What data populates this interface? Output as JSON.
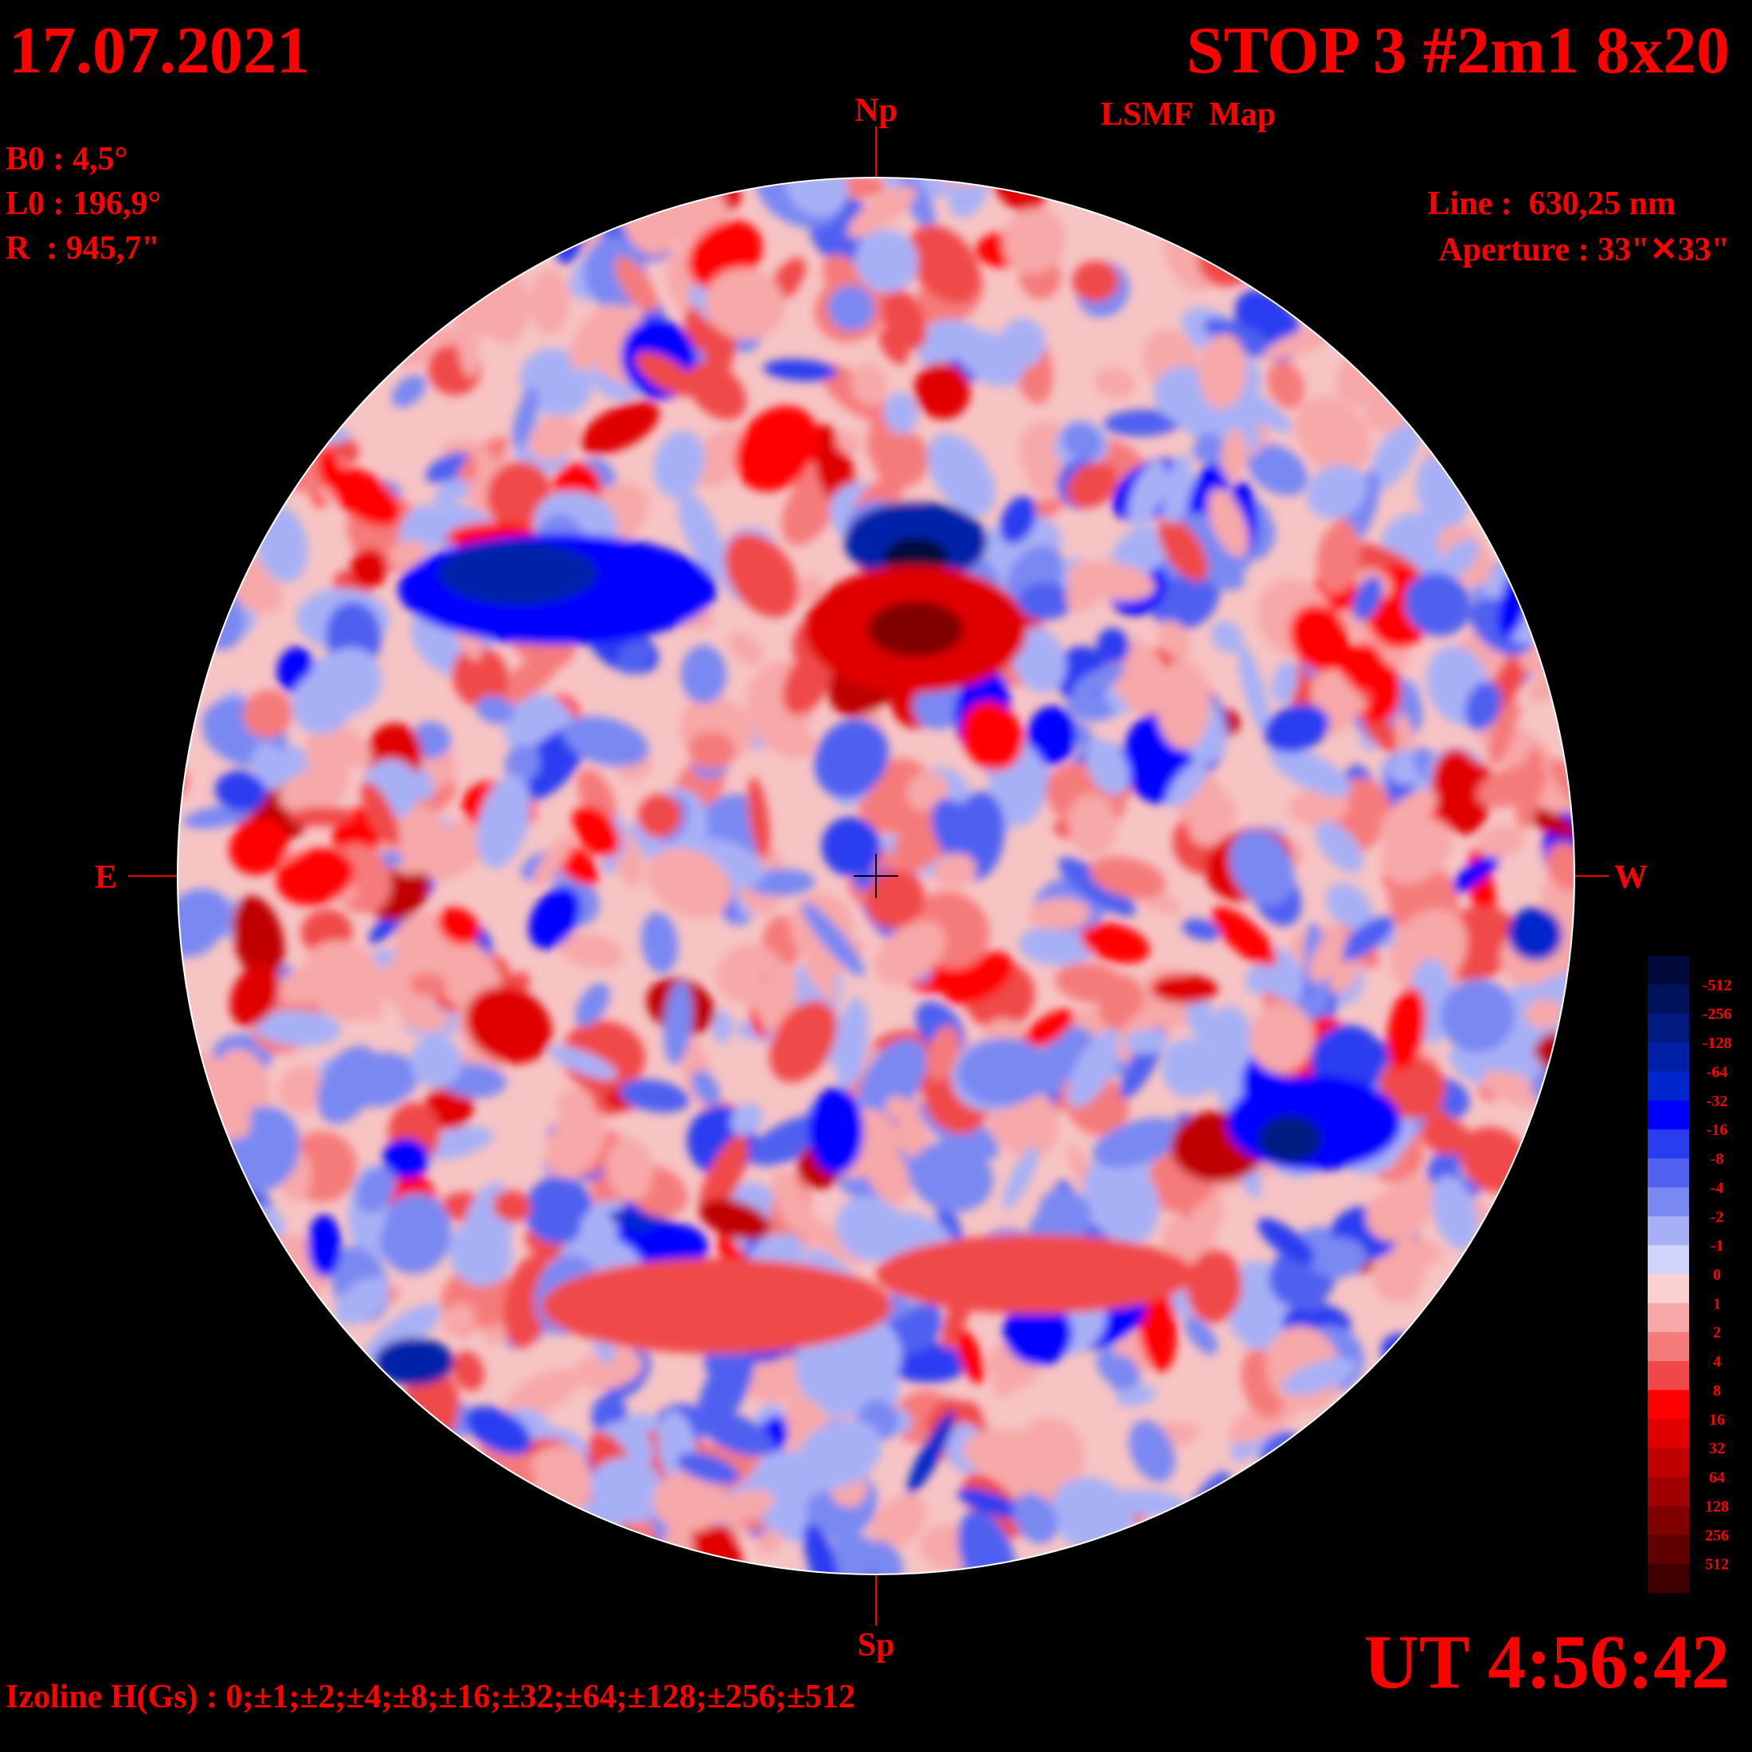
{
  "header": {
    "date": "17.07.2021",
    "title": "STOP 3 #2m1 8x20",
    "subtitle": "LSMF  Map",
    "b0": "B0 : 4,5°",
    "l0": "L0 : 196,9°",
    "r": "R  : 945,7\"",
    "line": "Line :  630,25 nm",
    "aperture": "Aperture : 33\"✕33\""
  },
  "compass": {
    "north": "Np",
    "south": "Sp",
    "east": "E",
    "west": "W"
  },
  "colorbar": {
    "labels": [
      "-512",
      "-256",
      "-128",
      "-64",
      "-32",
      "-16",
      "-8",
      "-4",
      "-2",
      "-1",
      "0",
      "1",
      "2",
      "4",
      "8",
      "16",
      "32",
      "64",
      "128",
      "256",
      "512"
    ]
  },
  "footer": {
    "time": "UT 4:56:42",
    "izoline": "Izoline H(Gs) : 0;±1;±2;±4;±8;±16;±32;±64;±128;±256;±512"
  }
}
